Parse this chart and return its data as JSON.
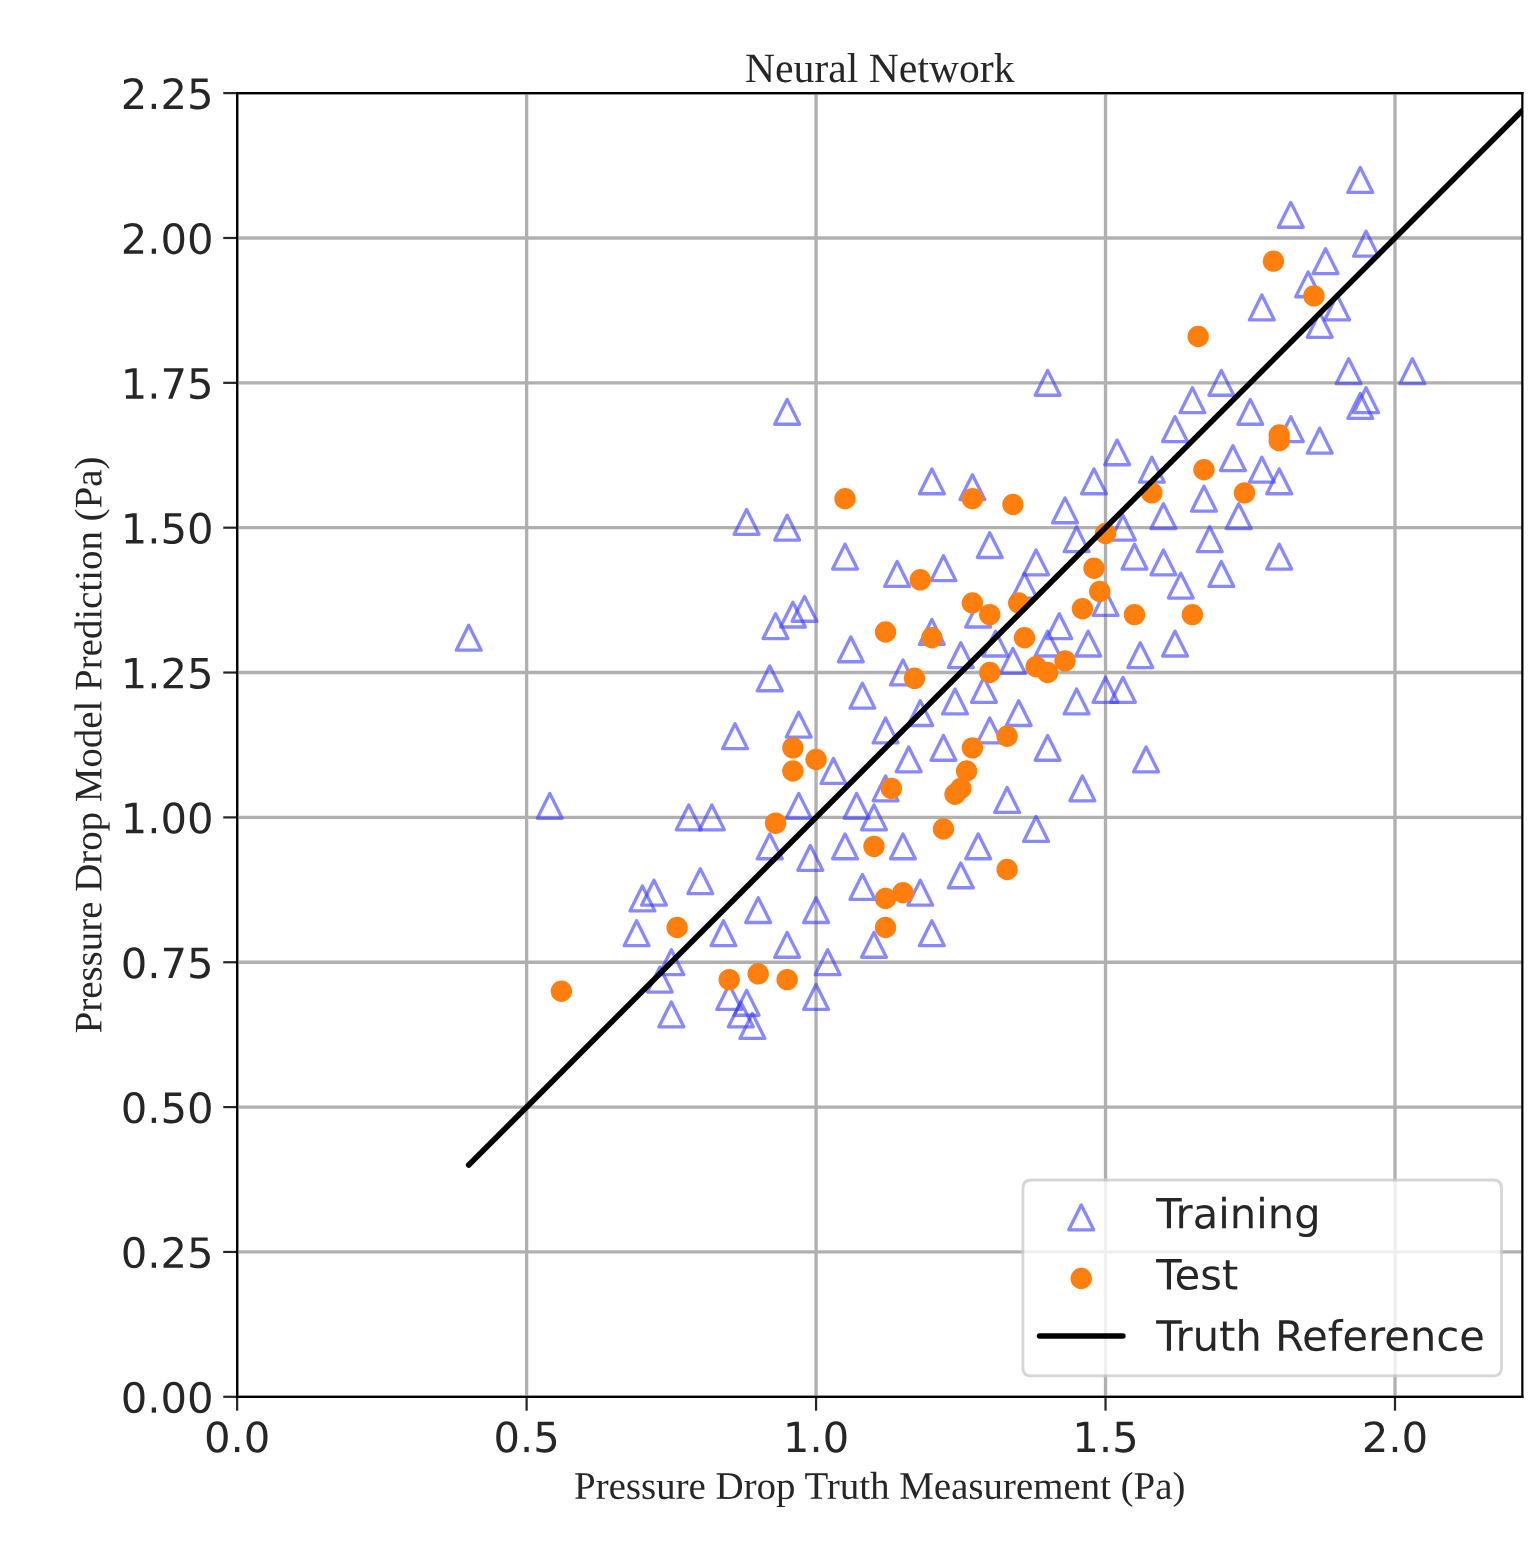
{
  "chart_data": {
    "type": "scatter",
    "title": "Neural Network",
    "xlabel": "Pressure Drop Truth Measurement (Pa)",
    "ylabel": "Pressure Drop Model Prediction (Pa)",
    "xlim": [
      0,
      2.22
    ],
    "ylim": [
      0,
      2.25
    ],
    "xticks": [
      {
        "value": 0,
        "label": "0.0"
      },
      0.5,
      {
        "value": 1,
        "label": "1.0"
      },
      1.5,
      {
        "value": 2,
        "label": "2.0"
      }
    ],
    "yticks": [
      {
        "value": 0,
        "label": "0.00"
      },
      0.25,
      {
        "value": 0.5,
        "label": "0.50"
      },
      0.75,
      {
        "value": 1,
        "label": "1.00"
      },
      1.25,
      {
        "value": 1.5,
        "label": "1.50"
      },
      1.75,
      {
        "value": 2,
        "label": "2.00"
      },
      2.25
    ],
    "grid": true,
    "legend": "bottom right",
    "series": [
      {
        "name": "Training",
        "marker": "triangle",
        "color": "#3a3aff",
        "x": [
          0.4,
          0.54,
          0.95,
          0.88,
          0.95,
          1.4,
          1.2,
          2.03,
          1.94,
          1.95,
          1.95,
          1.94,
          1.82,
          1.8,
          1.87,
          1.92,
          0.69,
          0.7,
          0.72,
          0.73,
          0.75,
          0.75,
          0.78,
          0.82,
          0.8,
          0.84,
          0.85,
          0.87,
          0.88,
          0.89,
          0.9,
          0.86,
          0.92,
          0.93,
          0.96,
          0.98,
          0.97,
          0.99,
          1.0,
          1.0,
          1.03,
          1.05,
          1.06,
          1.08,
          1.08,
          1.1,
          1.12,
          1.14,
          1.15,
          1.16,
          1.18,
          1.2,
          1.2,
          1.22,
          1.24,
          1.25,
          1.27,
          1.28,
          1.29,
          1.3,
          1.31,
          1.33,
          1.35,
          1.36,
          1.38,
          1.4,
          1.42,
          1.43,
          1.45,
          1.47,
          1.48,
          1.5,
          1.52,
          1.53,
          1.55,
          1.56,
          1.58,
          1.6,
          1.62,
          1.63,
          1.65,
          1.67,
          1.68,
          1.7,
          1.72,
          1.75,
          1.77,
          1.8,
          1.82,
          1.85,
          1.87,
          1.88,
          1.9,
          1.62,
          1.57,
          1.5,
          1.46,
          1.38,
          1.25,
          1.18,
          1.1,
          1.02,
          0.95,
          1.05,
          1.12,
          1.22,
          1.3,
          1.4,
          1.28,
          1.34,
          1.15,
          0.92,
          0.97,
          1.07,
          1.45,
          1.53,
          1.6,
          1.7,
          1.77,
          1.73
        ],
        "values": [
          1.31,
          1.02,
          1.7,
          1.51,
          1.5,
          1.75,
          1.58,
          1.77,
          2.1,
          1.99,
          1.72,
          1.71,
          2.04,
          1.45,
          1.65,
          1.77,
          0.8,
          0.86,
          0.87,
          0.72,
          0.66,
          0.75,
          1.0,
          1.0,
          0.89,
          0.8,
          0.69,
          0.66,
          0.68,
          0.64,
          0.84,
          1.14,
          1.24,
          1.33,
          1.35,
          1.36,
          1.16,
          0.93,
          0.84,
          0.69,
          1.08,
          1.45,
          1.29,
          1.21,
          0.88,
          1.0,
          1.15,
          1.42,
          1.25,
          1.1,
          1.18,
          1.32,
          0.8,
          1.43,
          1.2,
          1.28,
          1.57,
          0.95,
          1.22,
          1.47,
          1.3,
          1.03,
          1.18,
          1.4,
          1.44,
          1.12,
          1.33,
          1.53,
          1.2,
          1.3,
          1.58,
          1.37,
          1.63,
          1.22,
          1.45,
          1.28,
          1.6,
          1.52,
          1.67,
          1.4,
          1.72,
          1.55,
          1.48,
          1.75,
          1.62,
          1.7,
          1.88,
          1.58,
          1.67,
          1.92,
          1.85,
          1.96,
          1.88,
          1.3,
          1.1,
          1.22,
          1.05,
          0.98,
          0.9,
          0.87,
          0.78,
          0.75,
          0.78,
          0.95,
          1.05,
          1.12,
          1.15,
          1.3,
          1.35,
          1.27,
          0.95,
          0.95,
          1.02,
          1.02,
          1.48,
          1.5,
          1.44,
          1.42,
          1.6,
          1.52
        ]
      },
      {
        "name": "Test",
        "marker": "circle",
        "color": "#ff7f0e",
        "x": [
          0.56,
          0.76,
          0.85,
          0.9,
          0.95,
          0.93,
          0.96,
          0.96,
          1.05,
          1.0,
          1.1,
          1.12,
          1.12,
          1.15,
          1.13,
          1.12,
          1.17,
          1.18,
          1.2,
          1.22,
          1.24,
          1.25,
          1.26,
          1.27,
          1.27,
          1.27,
          1.3,
          1.3,
          1.33,
          1.33,
          1.34,
          1.35,
          1.36,
          1.38,
          1.4,
          1.43,
          1.46,
          1.48,
          1.49,
          1.5,
          1.55,
          1.58,
          1.65,
          1.66,
          1.67,
          1.74,
          1.79,
          1.8,
          1.8,
          1.86
        ],
        "values": [
          0.7,
          0.81,
          0.72,
          0.73,
          0.72,
          0.99,
          1.08,
          1.12,
          1.55,
          1.1,
          0.95,
          0.81,
          0.86,
          0.87,
          1.05,
          1.32,
          1.24,
          1.41,
          1.31,
          0.98,
          1.04,
          1.05,
          1.08,
          1.12,
          1.55,
          1.37,
          1.35,
          1.25,
          0.91,
          1.14,
          1.54,
          1.37,
          1.31,
          1.26,
          1.25,
          1.27,
          1.36,
          1.43,
          1.39,
          1.49,
          1.35,
          1.56,
          1.35,
          1.83,
          1.6,
          1.56,
          1.96,
          1.65,
          1.66,
          1.9
        ]
      },
      {
        "name": "Truth Reference",
        "type": "line",
        "color": "#000000",
        "x": [
          0.4,
          2.22
        ],
        "values": [
          0.4,
          2.22
        ]
      }
    ]
  }
}
